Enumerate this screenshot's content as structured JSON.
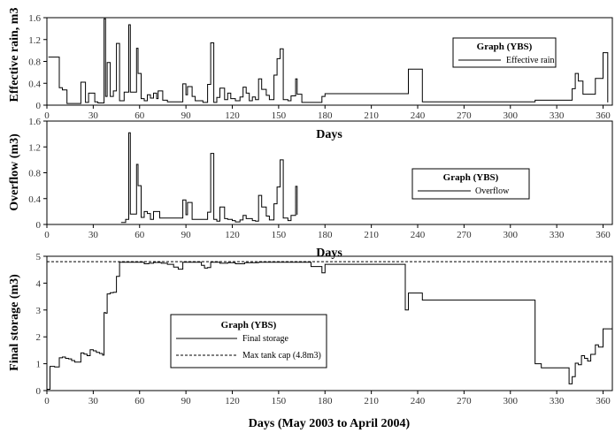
{
  "chart_data": [
    {
      "type": "line",
      "title": "",
      "xlabel": "Days",
      "ylabel": "Effective rain, m3",
      "xlim": [
        0,
        366
      ],
      "ylim": [
        0,
        1.6
      ],
      "x_ticks": [
        0,
        30,
        60,
        90,
        120,
        150,
        180,
        210,
        240,
        270,
        300,
        330,
        360
      ],
      "y_ticks": [
        "0",
        "0.4",
        "0.8",
        "1.2",
        "1.6"
      ],
      "legend": {
        "title": "Graph (YBS)",
        "entries": [
          "Effective rain"
        ],
        "placement": "top-right"
      },
      "series": [
        {
          "name": "Effective rain",
          "color": "#000000",
          "style": "solid",
          "points": [
            [
              1,
              0.88
            ],
            [
              8,
              0.32
            ],
            [
              10,
              0.28
            ],
            [
              13,
              0.03
            ],
            [
              16,
              0.03
            ],
            [
              22,
              0.42
            ],
            [
              25,
              0.05
            ],
            [
              27,
              0.22
            ],
            [
              31,
              0.06
            ],
            [
              33,
              0.04
            ],
            [
              37,
              1.58
            ],
            [
              38,
              0.16
            ],
            [
              39,
              0.78
            ],
            [
              41,
              0.16
            ],
            [
              43,
              0.26
            ],
            [
              45,
              1.13
            ],
            [
              47,
              0.08
            ],
            [
              50,
              0.24
            ],
            [
              53,
              1.47
            ],
            [
              54,
              0.24
            ],
            [
              58,
              1.04
            ],
            [
              59,
              0.58
            ],
            [
              61,
              0.12
            ],
            [
              63,
              0.08
            ],
            [
              65,
              0.19
            ],
            [
              67,
              0.13
            ],
            [
              69,
              0.22
            ],
            [
              71,
              0.12
            ],
            [
              72,
              0.26
            ],
            [
              75,
              0.09
            ],
            [
              78,
              0.06
            ],
            [
              86,
              0.06
            ],
            [
              88,
              0.39
            ],
            [
              90,
              0.19
            ],
            [
              91,
              0.34
            ],
            [
              94,
              0.16
            ],
            [
              96,
              0.08
            ],
            [
              101,
              0.05
            ],
            [
              104,
              0.38
            ],
            [
              106,
              1.14
            ],
            [
              108,
              0.05
            ],
            [
              110,
              0.14
            ],
            [
              112,
              0.31
            ],
            [
              115,
              0.1
            ],
            [
              117,
              0.22
            ],
            [
              119,
              0.12
            ],
            [
              122,
              0.08
            ],
            [
              125,
              0.15
            ],
            [
              127,
              0.33
            ],
            [
              129,
              0.22
            ],
            [
              131,
              0.08
            ],
            [
              133,
              0.15
            ],
            [
              135,
              0.1
            ],
            [
              137,
              0.48
            ],
            [
              139,
              0.29
            ],
            [
              142,
              0.18
            ],
            [
              144,
              0.1
            ],
            [
              147,
              0.55
            ],
            [
              149,
              0.85
            ],
            [
              151,
              1.03
            ],
            [
              153,
              0.1
            ],
            [
              156,
              0.08
            ],
            [
              158,
              0.17
            ],
            [
              161,
              0.48
            ],
            [
              162,
              0.2
            ],
            [
              165,
              0.05
            ],
            [
              169,
              0.05
            ],
            [
              178,
              0.16
            ],
            [
              180,
              0.21
            ],
            [
              234,
              0.66
            ],
            [
              243,
              0.06
            ],
            [
              316,
              0.09
            ],
            [
              340,
              0.3
            ],
            [
              342,
              0.58
            ],
            [
              344,
              0.44
            ],
            [
              347,
              0.2
            ],
            [
              355,
              0.49
            ],
            [
              360,
              0.96
            ],
            [
              363,
              0.05
            ]
          ]
        }
      ]
    },
    {
      "type": "line",
      "title": "",
      "xlabel": "Days",
      "ylabel": "Overflow (m3)",
      "xlim": [
        0,
        366
      ],
      "ylim": [
        0,
        1.6
      ],
      "x_ticks": [
        0,
        30,
        60,
        90,
        120,
        150,
        180,
        210,
        240,
        270,
        300,
        330,
        360
      ],
      "y_ticks": [
        "0",
        "0.4",
        "0.8",
        "1.2",
        "1.6"
      ],
      "legend": {
        "title": "Graph (YBS)",
        "entries": [
          "Overflow"
        ],
        "placement": "right"
      },
      "series": [
        {
          "name": "Overflow",
          "color": "#000000",
          "style": "solid",
          "points": [
            [
              48,
              0.03
            ],
            [
              51,
              0.08
            ],
            [
              53,
              1.42
            ],
            [
              54,
              0.16
            ],
            [
              58,
              0.93
            ],
            [
              59,
              0.6
            ],
            [
              61,
              0.11
            ],
            [
              63,
              0.2
            ],
            [
              65,
              0.17
            ],
            [
              67,
              0.08
            ],
            [
              69,
              0.2
            ],
            [
              71,
              0.2
            ],
            [
              73,
              0.1
            ],
            [
              88,
              0.38
            ],
            [
              90,
              0.15
            ],
            [
              91,
              0.34
            ],
            [
              94,
              0.08
            ],
            [
              104,
              0.19
            ],
            [
              106,
              1.1
            ],
            [
              108,
              0.08
            ],
            [
              110,
              0.05
            ],
            [
              112,
              0.27
            ],
            [
              115,
              0.09
            ],
            [
              117,
              0.08
            ],
            [
              120,
              0.06
            ],
            [
              122,
              0.04
            ],
            [
              125,
              0.07
            ],
            [
              127,
              0.14
            ],
            [
              129,
              0.09
            ],
            [
              133,
              0.06
            ],
            [
              135,
              0.05
            ],
            [
              137,
              0.45
            ],
            [
              139,
              0.27
            ],
            [
              142,
              0.13
            ],
            [
              144,
              0.07
            ],
            [
              147,
              0.32
            ],
            [
              149,
              0.58
            ],
            [
              151,
              1.0
            ],
            [
              153,
              0.1
            ],
            [
              156,
              0.06
            ],
            [
              158,
              0.14
            ],
            [
              161,
              0.59
            ],
            [
              162,
              0.15
            ]
          ]
        }
      ]
    },
    {
      "type": "line",
      "title": "",
      "xlabel": "Days (May 2003 to April 2004)",
      "ylabel": "Final storage (m3)",
      "xlim": [
        0,
        366
      ],
      "ylim": [
        0,
        5
      ],
      "x_ticks": [
        0,
        30,
        60,
        90,
        120,
        150,
        180,
        210,
        240,
        270,
        300,
        330,
        360
      ],
      "y_ticks": [
        "0",
        "1",
        "2",
        "3",
        "4",
        "5"
      ],
      "legend": {
        "title": "Graph (YBS)",
        "entries": [
          "Final storage",
          "Max tank cap (4.8m3)"
        ],
        "placement": "center-left"
      },
      "series": [
        {
          "name": "Final storage",
          "color": "#000000",
          "style": "solid",
          "points": [
            [
              0,
              0.05
            ],
            [
              2,
              0.9
            ],
            [
              5,
              0.88
            ],
            [
              8,
              1.22
            ],
            [
              10,
              1.25
            ],
            [
              12,
              1.2
            ],
            [
              14,
              1.18
            ],
            [
              16,
              1.12
            ],
            [
              18,
              1.06
            ],
            [
              22,
              1.4
            ],
            [
              24,
              1.36
            ],
            [
              26,
              1.3
            ],
            [
              28,
              1.52
            ],
            [
              30,
              1.48
            ],
            [
              32,
              1.42
            ],
            [
              34,
              1.38
            ],
            [
              36,
              1.32
            ],
            [
              37,
              2.9
            ],
            [
              38,
              2.88
            ],
            [
              39,
              3.6
            ],
            [
              41,
              3.64
            ],
            [
              43,
              3.66
            ],
            [
              45,
              4.25
            ],
            [
              47,
              4.78
            ],
            [
              60,
              4.78
            ],
            [
              63,
              4.72
            ],
            [
              66,
              4.74
            ],
            [
              69,
              4.77
            ],
            [
              74,
              4.74
            ],
            [
              78,
              4.7
            ],
            [
              82,
              4.6
            ],
            [
              85,
              4.52
            ],
            [
              88,
              4.78
            ],
            [
              100,
              4.66
            ],
            [
              102,
              4.56
            ],
            [
              104,
              4.58
            ],
            [
              106,
              4.78
            ],
            [
              112,
              4.74
            ],
            [
              117,
              4.76
            ],
            [
              122,
              4.72
            ],
            [
              128,
              4.76
            ],
            [
              137,
              4.78
            ],
            [
              165,
              4.78
            ],
            [
              171,
              4.62
            ],
            [
              178,
              4.38
            ],
            [
              180,
              4.7
            ],
            [
              232,
              3.0
            ],
            [
              234,
              3.63
            ],
            [
              243,
              3.37
            ],
            [
              316,
              1.0
            ],
            [
              320,
              0.85
            ],
            [
              338,
              0.25
            ],
            [
              340,
              0.52
            ],
            [
              342,
              1.02
            ],
            [
              344,
              0.96
            ],
            [
              346,
              1.3
            ],
            [
              348,
              1.2
            ],
            [
              350,
              1.1
            ],
            [
              352,
              1.35
            ],
            [
              355,
              1.7
            ],
            [
              357,
              1.62
            ],
            [
              360,
              2.3
            ],
            [
              366,
              2.22
            ]
          ]
        },
        {
          "name": "Max tank cap (4.8m3)",
          "color": "#000000",
          "style": "dashed",
          "points": [
            [
              0,
              4.8
            ],
            [
              366,
              4.8
            ]
          ]
        }
      ]
    }
  ]
}
